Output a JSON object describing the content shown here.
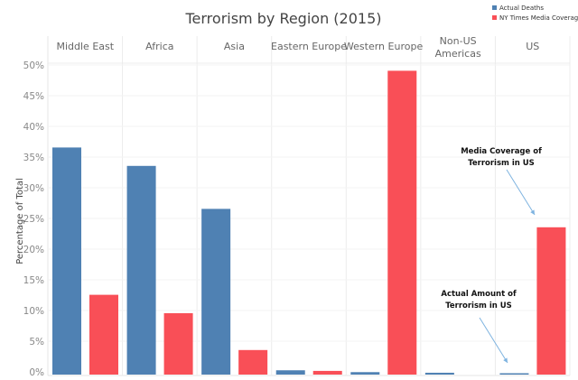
{
  "chart_data": {
    "type": "bar",
    "title": "Terrorism by Region (2015)",
    "ylabel": "Percentage of Total",
    "xlabel": "",
    "ylim": [
      0,
      50
    ],
    "yticks": [
      "0%",
      "5%",
      "10%",
      "15%",
      "20%",
      "25%",
      "30%",
      "35%",
      "40%",
      "45%",
      "50%"
    ],
    "grid": true,
    "legend_position": "top-right",
    "categories": [
      "Middle East",
      "Africa",
      "Asia",
      "Eastern Europe",
      "Western Europe",
      "Non-US Americas",
      "US"
    ],
    "category_lines": [
      [
        "Middle East"
      ],
      [
        "Africa"
      ],
      [
        "Asia"
      ],
      [
        "Eastern Europe"
      ],
      [
        "Western Europe"
      ],
      [
        "Non-US",
        "Americas"
      ],
      [
        "US"
      ]
    ],
    "series": [
      {
        "name": "Actual Deaths",
        "color": "#4f81b3",
        "values": [
          37,
          34,
          27,
          0.7,
          0.4,
          0.3,
          0.2
        ]
      },
      {
        "name": "NY Times Media Coverage",
        "color": "#f94f57",
        "values": [
          13,
          10,
          4,
          0.6,
          49.5,
          0,
          24
        ]
      }
    ],
    "annotations": [
      {
        "lines": [
          "Media Coverage of",
          "Terrorism in US"
        ],
        "target": "US / NY Times Media Coverage"
      },
      {
        "lines": [
          "Actual Amount of",
          "Terrorism in US"
        ],
        "target": "US / Actual Deaths"
      }
    ]
  }
}
